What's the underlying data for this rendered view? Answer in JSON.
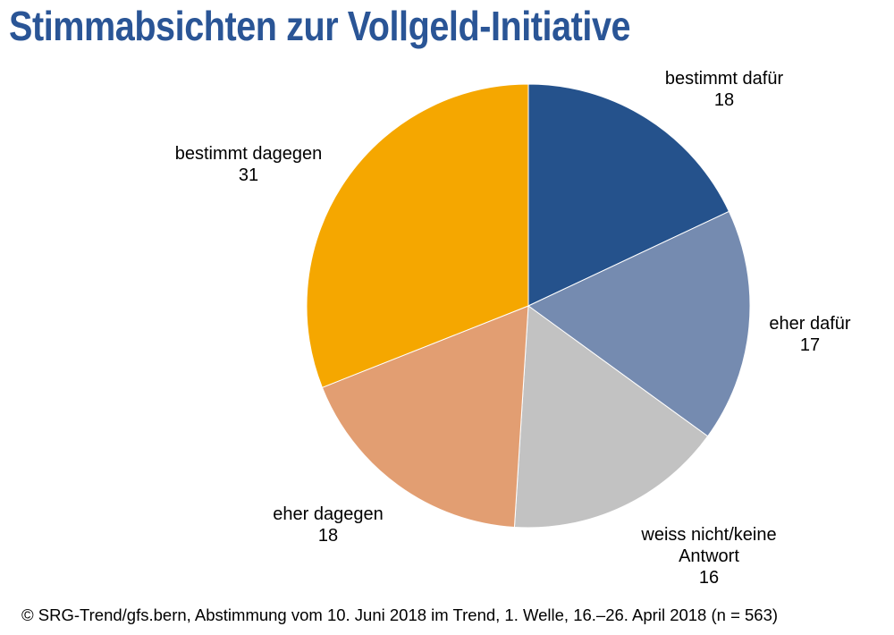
{
  "title": "Stimmabsichten zur Vollgeld-Initiative",
  "chart_data": {
    "type": "pie",
    "title": "Stimmabsichten zur Vollgeld-Initiative",
    "start": "12 o'clock",
    "direction": "clockwise",
    "slices": [
      {
        "label": "bestimmt dafür",
        "value": 18,
        "color": "#25528c"
      },
      {
        "label": "eher dafür",
        "value": 17,
        "color": "#758bb0"
      },
      {
        "label": "weiss nicht/keine Antwort",
        "label_lines": [
          "weiss nicht/keine",
          "Antwort"
        ],
        "value": 16,
        "color": "#c2c2c2"
      },
      {
        "label": "eher dagegen",
        "value": 18,
        "color": "#e29e72"
      },
      {
        "label": "bestimmt dagegen",
        "value": 31,
        "color": "#f5a700"
      }
    ]
  },
  "footer": "© SRG-Trend/gfs.bern,  Abstimmung vom 10. Juni 2018 im Trend, 1. Welle, 16.–26. April 2018 (n = 563)"
}
